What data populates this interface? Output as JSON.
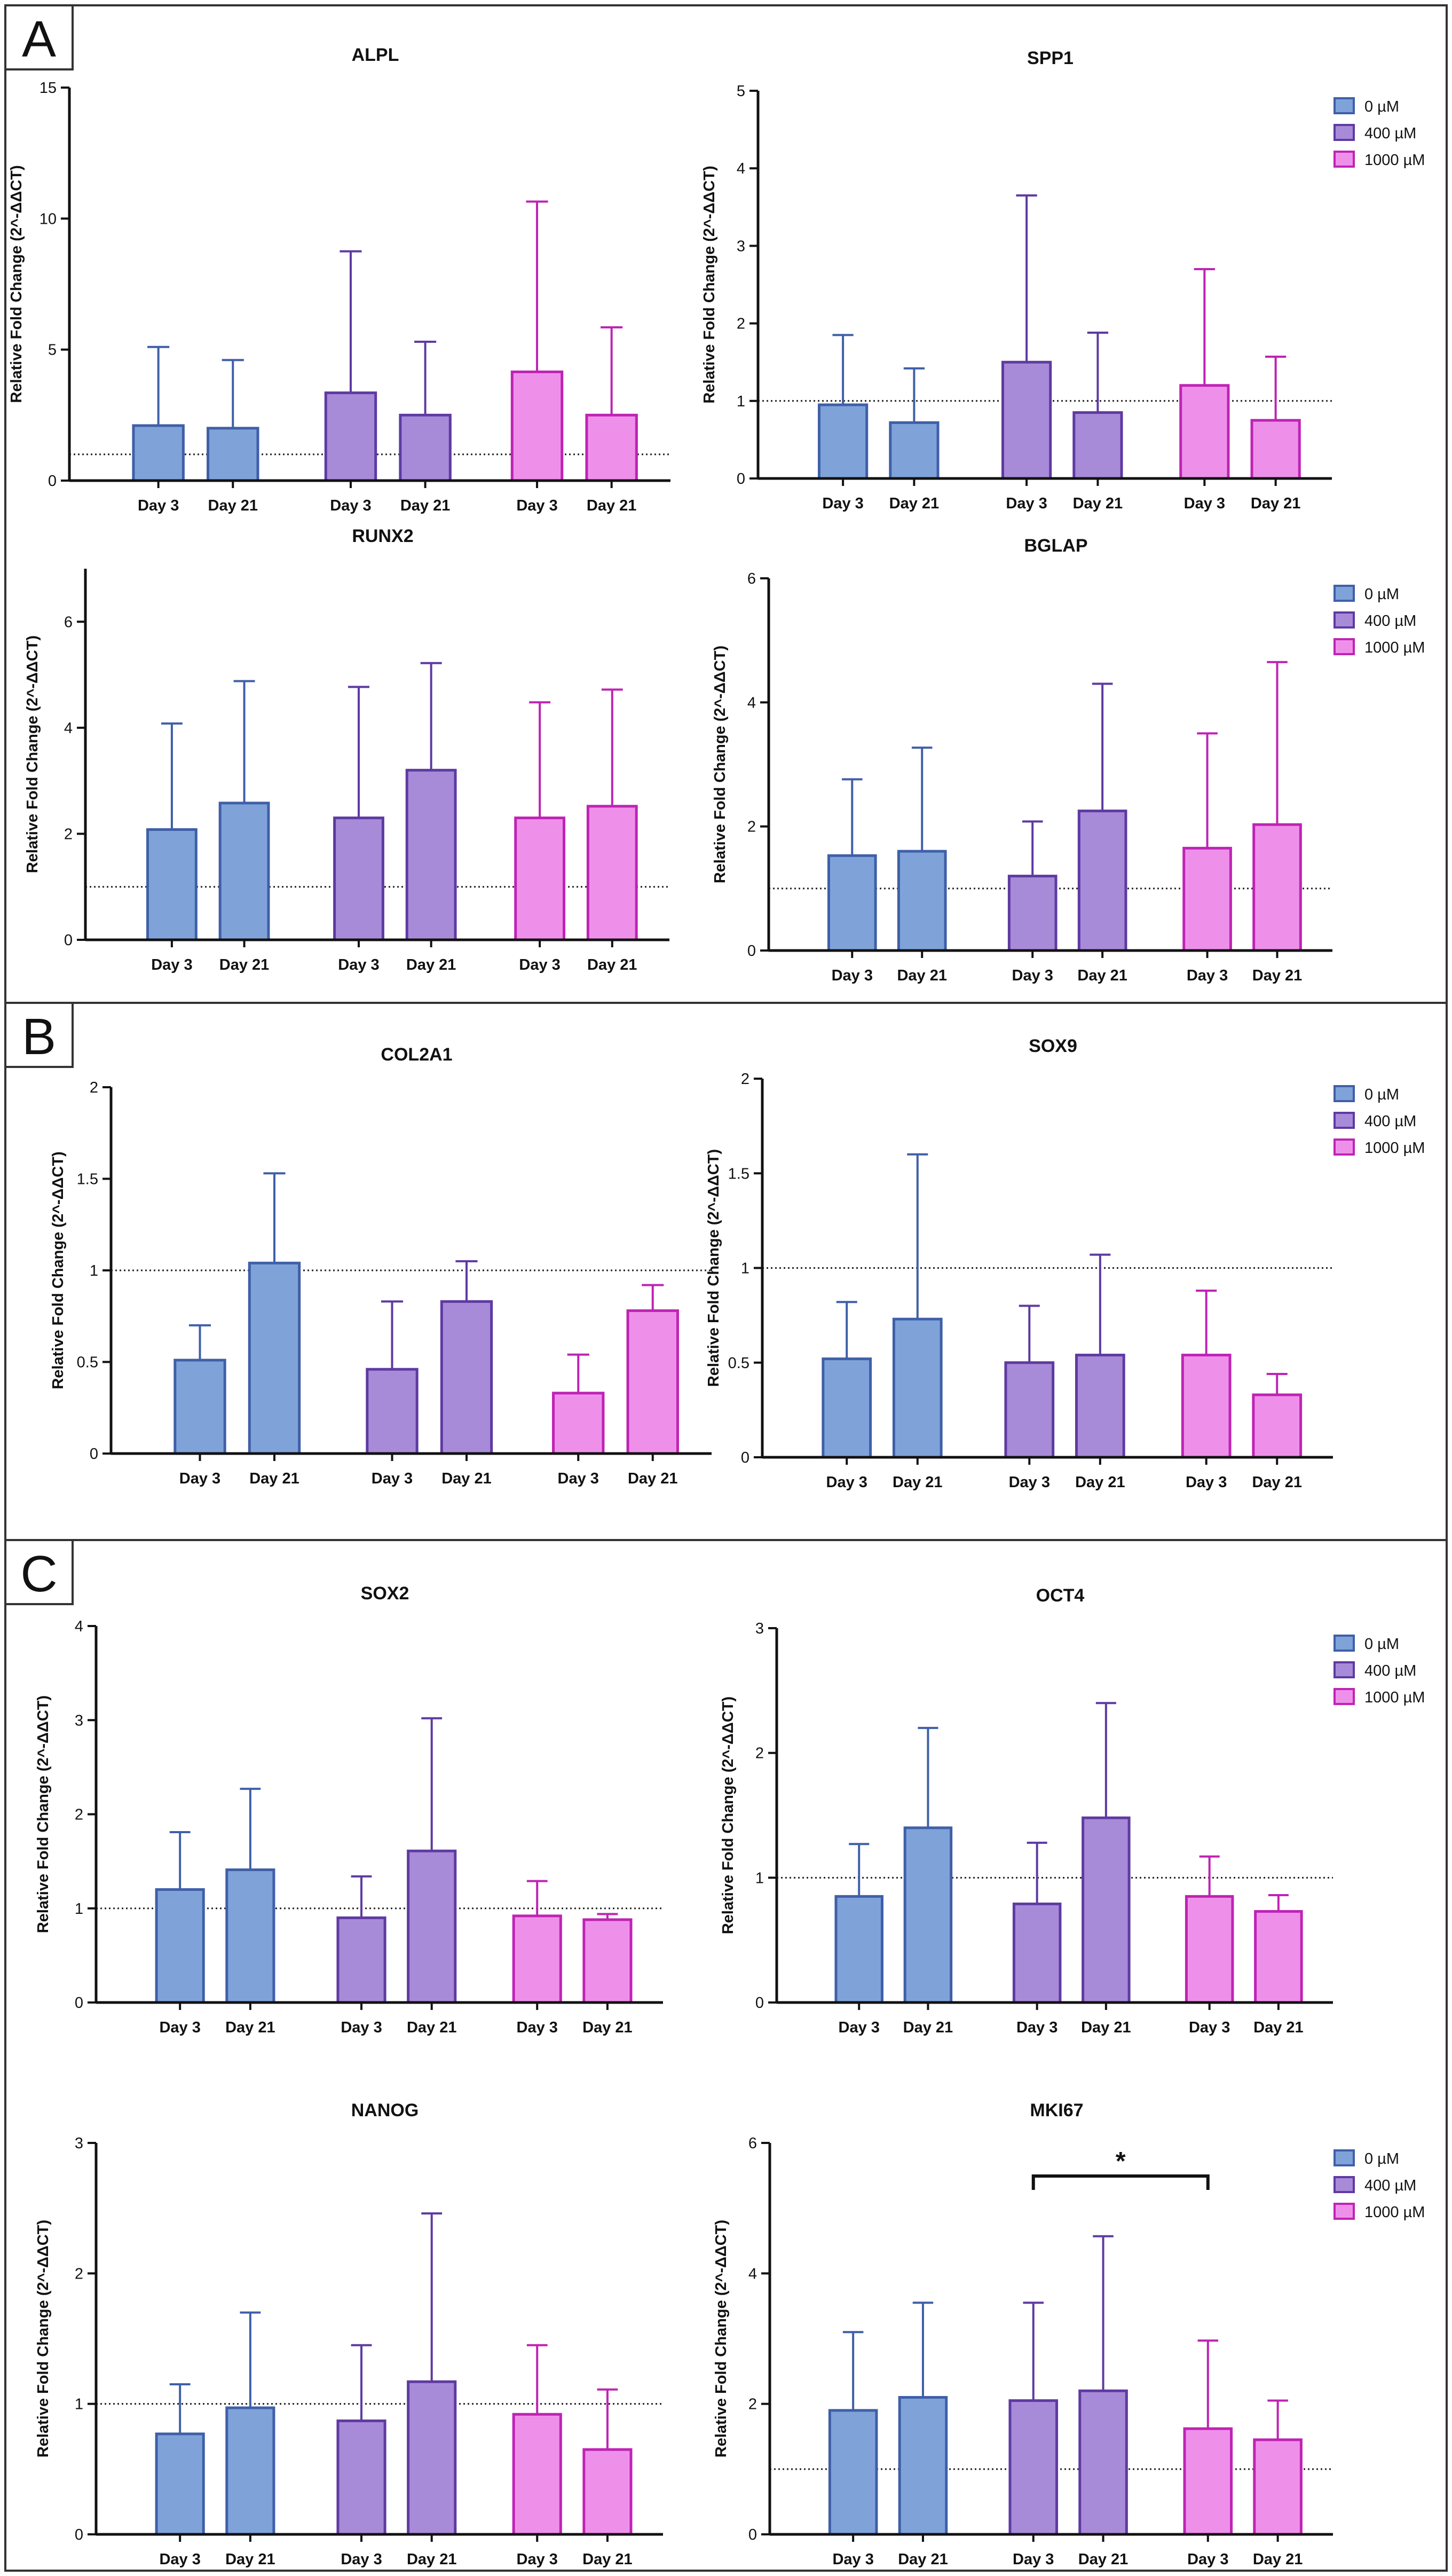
{
  "figure": {
    "panels": [
      {
        "letter": "A"
      },
      {
        "letter": "B"
      },
      {
        "letter": "C"
      }
    ],
    "legend": {
      "entries": [
        "0 µM",
        "400 µM",
        "1000 µM"
      ]
    },
    "colors": {
      "fill": [
        "#7fa3d9",
        "#a88bd8",
        "#ee90ea"
      ],
      "edge": [
        "#3f5fa8",
        "#5e3aa2",
        "#bf23b4"
      ]
    },
    "group_labels": [
      "Day 3",
      "Day 21"
    ]
  },
  "chart_data": [
    {
      "type": "bar",
      "title": "ALPL",
      "ylabel": "Relative Fold Change (2^-ΔΔCT)",
      "ylim": [
        0,
        15
      ],
      "yticks": [
        0,
        5,
        10,
        15
      ],
      "reference_line": 1,
      "categories": [
        "Day 3",
        "Day 21"
      ],
      "series": [
        {
          "name": "0 µM",
          "values": [
            2.1,
            2.0
          ],
          "errors": [
            3.0,
            2.6
          ]
        },
        {
          "name": "400 µM",
          "values": [
            3.35,
            2.5
          ],
          "errors": [
            5.4,
            2.8
          ]
        },
        {
          "name": "1000 µM",
          "values": [
            4.15,
            2.5
          ],
          "errors": [
            6.5,
            3.35
          ]
        }
      ]
    },
    {
      "type": "bar",
      "title": "SPP1",
      "ylabel": "Relative Fold Change (2^-ΔΔCT)",
      "ylim": [
        0,
        5
      ],
      "yticks": [
        0,
        1,
        2,
        3,
        4,
        5
      ],
      "reference_line": 1,
      "categories": [
        "Day 3",
        "Day 21"
      ],
      "legend": true,
      "series": [
        {
          "name": "0 µM",
          "values": [
            0.95,
            0.72
          ],
          "errors": [
            0.9,
            0.7
          ]
        },
        {
          "name": "400 µM",
          "values": [
            1.5,
            0.85
          ],
          "errors": [
            2.15,
            1.03
          ]
        },
        {
          "name": "1000 µM",
          "values": [
            1.2,
            0.75
          ],
          "errors": [
            1.5,
            0.82
          ]
        }
      ]
    },
    {
      "type": "bar",
      "title": "RUNX2",
      "ylabel": "Relative Fold Change (2^-ΔΔCT)",
      "ylim": [
        0,
        7
      ],
      "yticks": [
        0,
        2,
        4,
        6
      ],
      "reference_line": 1,
      "categories": [
        "Day 3",
        "Day 21"
      ],
      "series": [
        {
          "name": "0 µM",
          "values": [
            2.08,
            2.58
          ],
          "errors": [
            2.0,
            2.3
          ]
        },
        {
          "name": "400 µM",
          "values": [
            2.3,
            3.2
          ],
          "errors": [
            2.47,
            2.02
          ]
        },
        {
          "name": "1000 µM",
          "values": [
            2.3,
            2.52
          ],
          "errors": [
            2.18,
            2.2
          ]
        }
      ]
    },
    {
      "type": "bar",
      "title": "BGLAP",
      "ylabel": "Relative Fold Change (2^-ΔΔCT)",
      "ylim": [
        0,
        6
      ],
      "yticks": [
        0,
        2,
        4,
        6
      ],
      "reference_line": 1,
      "categories": [
        "Day 3",
        "Day 21"
      ],
      "legend": true,
      "series": [
        {
          "name": "0 µM",
          "values": [
            1.53,
            1.6
          ],
          "errors": [
            1.23,
            1.67
          ]
        },
        {
          "name": "400 µM",
          "values": [
            1.2,
            2.25
          ],
          "errors": [
            0.88,
            2.05
          ]
        },
        {
          "name": "1000 µM",
          "values": [
            1.65,
            2.03
          ],
          "errors": [
            1.85,
            2.62
          ]
        }
      ]
    },
    {
      "type": "bar",
      "title": "COL2A1",
      "ylabel": "Relative Fold Change (2^-ΔΔCT)",
      "ylim": [
        0,
        2.0
      ],
      "yticks": [
        0,
        0.5,
        1.0,
        1.5,
        2.0
      ],
      "reference_line": 1,
      "categories": [
        "Day 3",
        "Day 21"
      ],
      "series": [
        {
          "name": "0 µM",
          "values": [
            0.51,
            1.04
          ],
          "errors": [
            0.19,
            0.49
          ]
        },
        {
          "name": "400 µM",
          "values": [
            0.46,
            0.83
          ],
          "errors": [
            0.37,
            0.22
          ]
        },
        {
          "name": "1000 µM",
          "values": [
            0.33,
            0.78
          ],
          "errors": [
            0.21,
            0.14
          ]
        }
      ]
    },
    {
      "type": "bar",
      "title": "SOX9",
      "ylabel": "Relative Fold Change (2^-ΔΔCT)",
      "ylim": [
        0,
        2.0
      ],
      "yticks": [
        0,
        0.5,
        1.0,
        1.5,
        2.0
      ],
      "reference_line": 1,
      "categories": [
        "Day 3",
        "Day 21"
      ],
      "legend": true,
      "series": [
        {
          "name": "0 µM",
          "values": [
            0.52,
            0.73
          ],
          "errors": [
            0.3,
            0.87
          ]
        },
        {
          "name": "400 µM",
          "values": [
            0.5,
            0.54
          ],
          "errors": [
            0.3,
            0.53
          ]
        },
        {
          "name": "1000 µM",
          "values": [
            0.54,
            0.33
          ],
          "errors": [
            0.34,
            0.11
          ]
        }
      ]
    },
    {
      "type": "bar",
      "title": "SOX2",
      "ylabel": "Relative Fold Change (2^-ΔΔCT)",
      "ylim": [
        0,
        4
      ],
      "yticks": [
        0,
        1,
        2,
        3,
        4
      ],
      "reference_line": 1,
      "categories": [
        "Day 3",
        "Day 21"
      ],
      "series": [
        {
          "name": "0 µM",
          "values": [
            1.2,
            1.41
          ],
          "errors": [
            0.61,
            0.86
          ]
        },
        {
          "name": "400 µM",
          "values": [
            0.9,
            1.61
          ],
          "errors": [
            0.44,
            1.41
          ]
        },
        {
          "name": "1000 µM",
          "values": [
            0.92,
            0.88
          ],
          "errors": [
            0.37,
            0.06
          ]
        }
      ]
    },
    {
      "type": "bar",
      "title": "OCT4",
      "ylabel": "Relative Fold Change (2^-ΔΔCT)",
      "ylim": [
        0,
        3
      ],
      "yticks": [
        0,
        1,
        2,
        3
      ],
      "reference_line": 1,
      "categories": [
        "Day 3",
        "Day 21"
      ],
      "legend": true,
      "series": [
        {
          "name": "0 µM",
          "values": [
            0.85,
            1.4
          ],
          "errors": [
            0.42,
            0.8
          ]
        },
        {
          "name": "400 µM",
          "values": [
            0.79,
            1.48
          ],
          "errors": [
            0.49,
            0.92
          ]
        },
        {
          "name": "1000 µM",
          "values": [
            0.85,
            0.73
          ],
          "errors": [
            0.32,
            0.13
          ]
        }
      ]
    },
    {
      "type": "bar",
      "title": "NANOG",
      "ylabel": "Relative Fold Change (2^-ΔΔCT)",
      "ylim": [
        0,
        3
      ],
      "yticks": [
        0,
        1,
        2,
        3
      ],
      "reference_line": 1,
      "categories": [
        "Day 3",
        "Day 21"
      ],
      "series": [
        {
          "name": "0 µM",
          "values": [
            0.77,
            0.97
          ],
          "errors": [
            0.38,
            0.73
          ]
        },
        {
          "name": "400 µM",
          "values": [
            0.87,
            1.17
          ],
          "errors": [
            0.58,
            1.29
          ]
        },
        {
          "name": "1000 µM",
          "values": [
            0.92,
            0.65
          ],
          "errors": [
            0.53,
            0.46
          ]
        }
      ]
    },
    {
      "type": "bar",
      "title": "MKI67",
      "ylabel": "Relative Fold Change (2^-ΔΔCT)",
      "ylim": [
        0,
        6
      ],
      "yticks": [
        0,
        2,
        4,
        6
      ],
      "reference_line": 1,
      "categories": [
        "Day 3",
        "Day 21"
      ],
      "legend": true,
      "series": [
        {
          "name": "0 µM",
          "values": [
            1.9,
            2.1
          ],
          "errors": [
            1.2,
            1.45
          ]
        },
        {
          "name": "400 µM",
          "values": [
            2.05,
            2.2
          ],
          "errors": [
            1.5,
            2.37
          ]
        },
        {
          "name": "1000 µM",
          "values": [
            1.62,
            1.45
          ],
          "errors": [
            1.35,
            0.6
          ]
        }
      ],
      "annotation": {
        "text": "*",
        "between": [
          "400 µM Day 3",
          "1000 µM Day 3"
        ]
      }
    }
  ]
}
